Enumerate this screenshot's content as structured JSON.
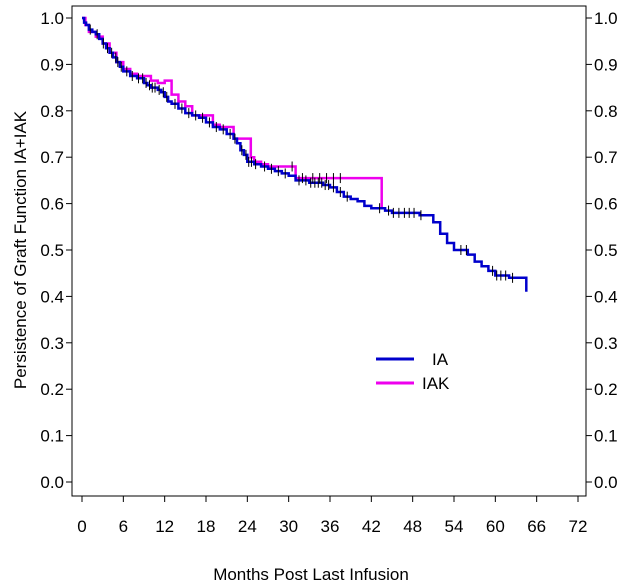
{
  "chart_data": {
    "type": "line",
    "title": "",
    "xlabel": "Months Post Last Infusion",
    "ylabel": "Persistence of Graft Function IA+IAK",
    "xlim": [
      0,
      72
    ],
    "ylim": [
      0,
      1.0
    ],
    "x_ticks": [
      0,
      6,
      12,
      18,
      24,
      30,
      36,
      42,
      48,
      54,
      60,
      66,
      72
    ],
    "x_tick_labels": [
      "0",
      "6",
      "12",
      "18",
      "24",
      "30",
      "36",
      "42",
      "48",
      "54",
      "60",
      "66",
      "72"
    ],
    "y_ticks": [
      0,
      0.1,
      0.2,
      0.3,
      0.4,
      0.5,
      0.6,
      0.7,
      0.8,
      0.9,
      1.0
    ],
    "y_tick_labels": [
      "0.0",
      "0.1",
      "0.2",
      "0.3",
      "0.4",
      "0.5",
      "0.6",
      "0.7",
      "0.8",
      "0.9",
      "1.0"
    ],
    "right_axis_mirrored": true,
    "grid": false,
    "legend_position": "lower-right",
    "step": true,
    "censor_marks": true,
    "series": [
      {
        "name": "IA",
        "color": "#0000cc",
        "x": [
          0,
          0.3,
          0.6,
          1,
          1.5,
          2,
          2.5,
          3,
          3.5,
          4,
          4.5,
          5,
          5.5,
          6,
          7,
          8,
          9,
          9.5,
          10,
          11,
          11.5,
          12,
          12.5,
          13,
          14,
          15,
          16,
          17,
          18,
          19,
          20,
          21,
          22,
          22.5,
          23,
          23.5,
          24,
          25,
          26,
          27,
          28,
          29,
          30,
          31,
          33,
          34,
          35,
          36,
          37,
          38,
          39,
          40,
          41,
          42,
          44,
          45,
          46,
          48,
          49,
          50,
          51,
          52,
          53,
          54,
          56,
          57,
          58,
          59,
          60,
          61,
          62,
          63,
          64.5
        ],
        "y": [
          1.0,
          0.99,
          0.985,
          0.975,
          0.97,
          0.965,
          0.955,
          0.945,
          0.935,
          0.925,
          0.915,
          0.905,
          0.895,
          0.885,
          0.875,
          0.87,
          0.86,
          0.855,
          0.85,
          0.845,
          0.84,
          0.83,
          0.82,
          0.815,
          0.805,
          0.795,
          0.79,
          0.785,
          0.775,
          0.765,
          0.76,
          0.75,
          0.74,
          0.73,
          0.715,
          0.705,
          0.69,
          0.685,
          0.68,
          0.675,
          0.67,
          0.665,
          0.66,
          0.65,
          0.645,
          0.645,
          0.64,
          0.635,
          0.625,
          0.615,
          0.61,
          0.605,
          0.595,
          0.59,
          0.585,
          0.58,
          0.58,
          0.58,
          0.575,
          0.575,
          0.56,
          0.535,
          0.515,
          0.5,
          0.49,
          0.475,
          0.465,
          0.455,
          0.445,
          0.445,
          0.44,
          0.44,
          0.41
        ]
      },
      {
        "name": "IAK",
        "color": "#ee00ee",
        "x": [
          0,
          0.5,
          1,
          2,
          3,
          4,
          5,
          6,
          7,
          8,
          9,
          10,
          11,
          12,
          13,
          14,
          15,
          16,
          17,
          18,
          19,
          20,
          21,
          22,
          23,
          24,
          24.5,
          25,
          26,
          27,
          28,
          29,
          30,
          31,
          43.5,
          43.5
        ],
        "y": [
          1.0,
          0.985,
          0.97,
          0.96,
          0.945,
          0.925,
          0.905,
          0.89,
          0.88,
          0.875,
          0.875,
          0.865,
          0.86,
          0.865,
          0.835,
          0.82,
          0.81,
          0.79,
          0.79,
          0.79,
          0.77,
          0.765,
          0.765,
          0.74,
          0.74,
          0.74,
          0.7,
          0.69,
          0.685,
          0.68,
          0.68,
          0.68,
          0.68,
          0.655,
          0.655,
          0.59
        ]
      }
    ],
    "censored_IA_x": [
      1.2,
      2.2,
      3.1,
      3.7,
      4.3,
      4.9,
      5.2,
      5.7,
      6.5,
      7.3,
      8.2,
      8.8,
      9.3,
      9.8,
      10.2,
      10.6,
      11.2,
      11.8,
      12.3,
      13.5,
      14.5,
      15.5,
      16.5,
      17.5,
      18.5,
      19.5,
      20.5,
      21.5,
      22.2,
      23.2,
      23.8,
      24.2,
      24.6,
      25.2,
      26.5,
      27.5,
      28.5,
      29.5,
      31.5,
      32.5,
      33.2,
      33.8,
      34.3,
      34.8,
      35.3,
      35.8,
      36.5,
      37.5,
      38.5,
      43.2,
      44.5,
      45.2,
      46,
      46.8,
      47.5,
      48.2,
      49.2,
      55,
      55.8,
      59.6,
      60.2,
      60.8,
      61.5,
      62.5
    ],
    "censored_IAK_x": [
      30.5,
      32,
      33.5,
      34.5,
      35.5,
      36.5,
      37.5
    ],
    "legend": [
      {
        "label": "IA",
        "color": "#0000cc"
      },
      {
        "label": "IAK",
        "color": "#ee00ee"
      }
    ]
  }
}
